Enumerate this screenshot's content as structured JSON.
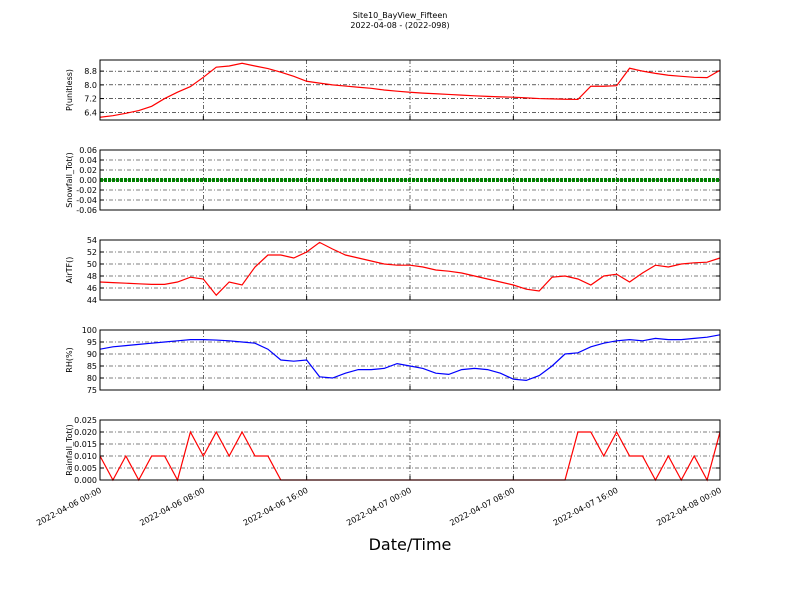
{
  "title": "Site10_BayView_Fifteen",
  "subtitle": "2022-04-08 - (2022-098)",
  "xlabel": "Date/Time",
  "xlim": [
    0,
    48
  ],
  "xticks": [
    {
      "value": 0,
      "label": "2022-04-06 00:00"
    },
    {
      "value": 8,
      "label": "2022-04-06 08:00"
    },
    {
      "value": 16,
      "label": "2022-04-06 16:00"
    },
    {
      "value": 24,
      "label": "2022-04-07 00:00"
    },
    {
      "value": 32,
      "label": "2022-04-07 08:00"
    },
    {
      "value": 40,
      "label": "2022-04-07 16:00"
    },
    {
      "value": 48,
      "label": "2022-04-08 00:00"
    }
  ],
  "x": [
    0,
    1,
    2,
    3,
    4,
    5,
    6,
    7,
    8,
    9,
    10,
    11,
    12,
    13,
    14,
    15,
    16,
    17,
    18,
    19,
    20,
    21,
    22,
    23,
    24,
    25,
    26,
    27,
    28,
    29,
    30,
    31,
    32,
    33,
    34,
    35,
    36,
    37,
    38,
    39,
    40,
    41,
    42,
    43,
    44,
    45,
    46,
    47,
    48
  ],
  "grid": true,
  "chart_data": [
    {
      "type": "line",
      "ylabel": "P(unitless)",
      "color": "#ff0000",
      "ylim": [
        5.95,
        9.45
      ],
      "yticks": [
        6.4,
        7.2,
        {
          "value": 8,
          "label": "8.0"
        },
        8.8
      ],
      "values": [
        6.11,
        6.2,
        6.34,
        6.5,
        6.75,
        7.2,
        7.57,
        7.9,
        8.44,
        9.03,
        9.1,
        9.26,
        9.1,
        8.95,
        8.74,
        8.5,
        8.21,
        8.1,
        8.0,
        7.93,
        7.86,
        7.8,
        7.7,
        7.63,
        7.57,
        7.52,
        7.48,
        7.44,
        7.4,
        7.36,
        7.33,
        7.3,
        7.28,
        7.24,
        7.2,
        7.18,
        7.16,
        7.15,
        7.92,
        7.92,
        7.95,
        8.97,
        8.8,
        8.67,
        8.56,
        8.5,
        8.44,
        8.42,
        8.85
      ]
    },
    {
      "type": "line",
      "ylabel": "Snowfall_Tot()",
      "color": "#008000",
      "ylim": [
        -0.06,
        0.06
      ],
      "yticks": [
        -0.06,
        -0.04,
        -0.02,
        {
          "value": 0,
          "label": "0.00"
        },
        0.02,
        0.04,
        0.06
      ],
      "values": [
        0,
        0,
        0,
        0,
        0,
        0,
        0,
        0,
        0,
        0,
        0,
        0,
        0,
        0,
        0,
        0,
        0,
        0,
        0,
        0,
        0,
        0,
        0,
        0,
        0,
        0,
        0,
        0,
        0,
        0,
        0,
        0,
        0,
        0,
        0,
        0,
        0,
        0,
        0,
        0,
        0,
        0,
        0,
        0,
        0,
        0,
        0,
        0,
        0
      ]
    },
    {
      "type": "line",
      "ylabel": "AirTF()",
      "color": "#ff0000",
      "ylim": [
        44,
        54
      ],
      "yticks": [
        44,
        46,
        48,
        50,
        52,
        54
      ],
      "values": [
        47,
        46.9,
        46.8,
        46.7,
        46.6,
        46.6,
        47,
        47.8,
        47.5,
        44.8,
        47,
        46.5,
        49.5,
        51.5,
        51.5,
        51,
        52,
        53.6,
        52.5,
        51.5,
        51,
        50.5,
        50,
        49.8,
        49.8,
        49.5,
        49,
        48.8,
        48.5,
        48,
        47.5,
        47,
        46.5,
        45.8,
        45.5,
        47.8,
        48,
        47.5,
        46.5,
        48,
        48.3,
        47,
        48.5,
        49.8,
        49.5,
        50,
        50.2,
        50.3,
        51
      ]
    },
    {
      "type": "line",
      "ylabel": "RH(%)",
      "color": "#0000ff",
      "ylim": [
        75,
        100
      ],
      "yticks": [
        75,
        80,
        85,
        90,
        95,
        100
      ],
      "values": [
        92,
        93,
        93.5,
        94,
        94.5,
        95,
        95.5,
        96,
        96,
        95.8,
        95.5,
        95,
        94.5,
        92,
        87.5,
        87,
        87.5,
        80.5,
        80,
        82,
        83.5,
        83.5,
        84,
        86,
        85,
        84,
        82,
        81.5,
        83.5,
        84,
        83.5,
        82,
        79.5,
        79,
        81,
        85,
        90,
        90.5,
        93,
        94.5,
        95.5,
        96,
        95.5,
        96.5,
        96,
        96,
        96.5,
        97,
        98
      ]
    },
    {
      "type": "line",
      "ylabel": "Rainfall_Tot()",
      "color": "#ff0000",
      "ylim": [
        0,
        0.025
      ],
      "yticks": [
        {
          "value": 0,
          "label": "0.000"
        },
        0.005,
        {
          "value": 0.01,
          "label": "0.010"
        },
        0.015,
        {
          "value": 0.02,
          "label": "0.020"
        },
        0.025
      ],
      "values": [
        0.01,
        0,
        0.01,
        0,
        0.01,
        0.01,
        0,
        0.02,
        0.01,
        0.02,
        0.01,
        0.02,
        0.01,
        0.01,
        0,
        0,
        0,
        0,
        0,
        0,
        0,
        0,
        0,
        0,
        0,
        0,
        0,
        0,
        0,
        0,
        0,
        0,
        0,
        0,
        0,
        0,
        0,
        0.02,
        0.02,
        0.01,
        0.02,
        0.01,
        0.01,
        0,
        0.01,
        0,
        0.01,
        0,
        0.02
      ]
    }
  ]
}
